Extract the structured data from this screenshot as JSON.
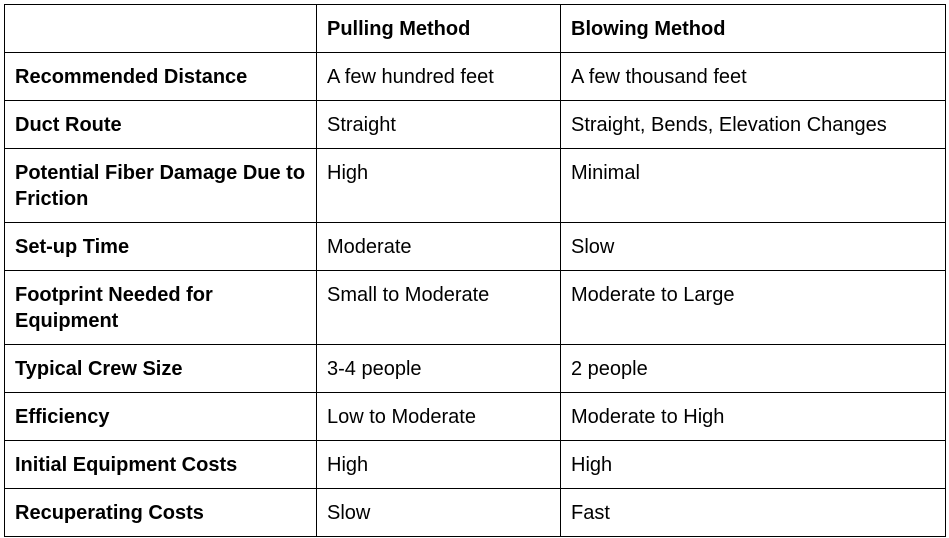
{
  "table": {
    "headers": [
      "",
      "Pulling Method",
      "Blowing Method"
    ],
    "rows": [
      {
        "label": "Recommended Distance",
        "pulling": "A few hundred feet",
        "blowing": "A few thousand feet"
      },
      {
        "label": "Duct Route",
        "pulling": "Straight",
        "blowing": "Straight, Bends, Elevation Changes"
      },
      {
        "label": "Potential Fiber Damage Due to Friction",
        "pulling": "High",
        "blowing": "Minimal"
      },
      {
        "label": "Set-up Time",
        "pulling": "Moderate",
        "blowing": "Slow"
      },
      {
        "label": "Footprint Needed for Equipment",
        "pulling": "Small to Moderate",
        "blowing": "Moderate to Large"
      },
      {
        "label": "Typical Crew Size",
        "pulling": "3-4 people",
        "blowing": "2 people"
      },
      {
        "label": "Efficiency",
        "pulling": "Low to Moderate",
        "blowing": "Moderate to High"
      },
      {
        "label": "Initial Equipment Costs",
        "pulling": "High",
        "blowing": "High"
      },
      {
        "label": "Recuperating Costs",
        "pulling": "Slow",
        "blowing": "Fast"
      }
    ]
  }
}
